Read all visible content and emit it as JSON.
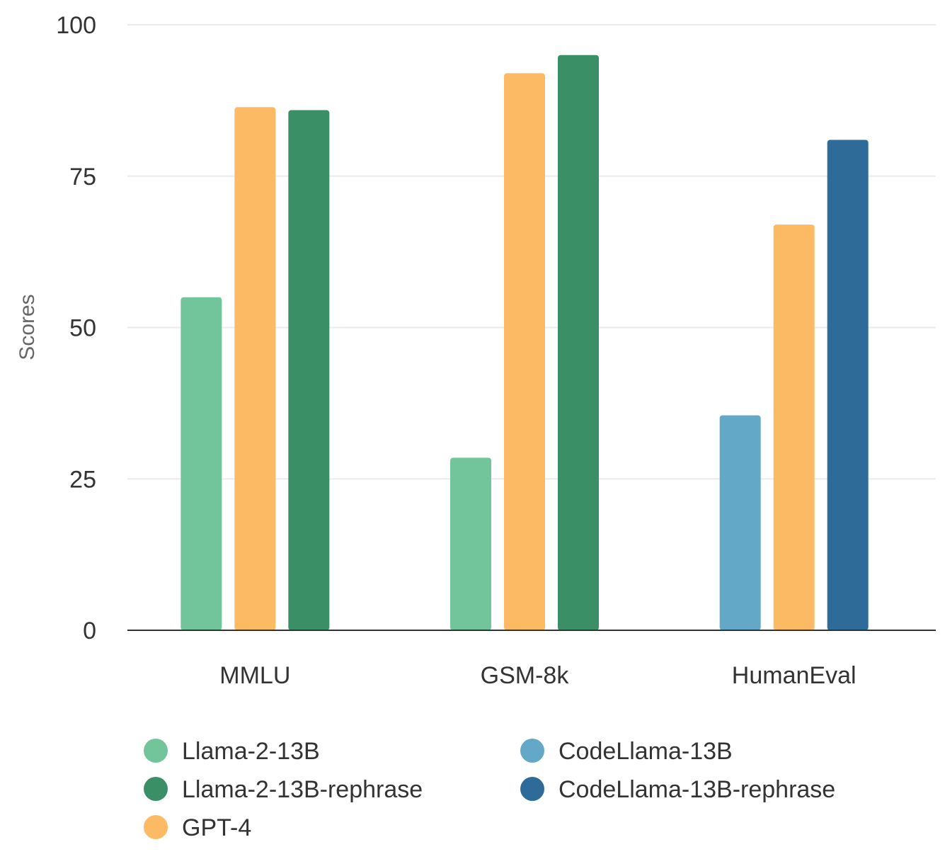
{
  "chart_data": {
    "type": "bar",
    "title": "",
    "xlabel": "",
    "ylabel": "Scores",
    "ylim": [
      0,
      100
    ],
    "yticks": [
      0,
      25,
      50,
      75,
      100
    ],
    "grid": true,
    "legend_position": "bottom",
    "categories": [
      "MMLU",
      "GSM-8k",
      "HumanEval"
    ],
    "series": [
      {
        "name": "Llama-2-13B",
        "color": "#72c59b",
        "values": [
          55,
          28.5,
          null
        ]
      },
      {
        "name": "Llama-2-13B-rephrase",
        "color": "#3a8f67",
        "values": [
          null,
          null,
          null
        ],
        "values_by_slot": true
      },
      {
        "name": "GPT-4",
        "color": "#fbba63",
        "values": [
          86.4,
          92,
          67
        ]
      },
      {
        "name": "CodeLlama-13B",
        "color": "#64a8c8",
        "values": [
          null,
          null,
          35.5
        ]
      },
      {
        "name": "CodeLlama-13B-rephrase",
        "color": "#2e6b98",
        "values": [
          null,
          null,
          81
        ]
      }
    ],
    "bars": [
      {
        "category": "MMLU",
        "series": "Llama-2-13B",
        "value": 55
      },
      {
        "category": "MMLU",
        "series": "GPT-4",
        "value": 86.4
      },
      {
        "category": "MMLU",
        "series": "Llama-2-13B-rephrase",
        "value": 85.9
      },
      {
        "category": "GSM-8k",
        "series": "Llama-2-13B",
        "value": 28.5
      },
      {
        "category": "GSM-8k",
        "series": "GPT-4",
        "value": 92
      },
      {
        "category": "GSM-8k",
        "series": "Llama-2-13B-rephrase",
        "value": 95
      },
      {
        "category": "HumanEval",
        "series": "CodeLlama-13B",
        "value": 35.5
      },
      {
        "category": "HumanEval",
        "series": "GPT-4",
        "value": 67
      },
      {
        "category": "HumanEval",
        "series": "CodeLlama-13B-rephrase",
        "value": 81
      }
    ],
    "legend": [
      {
        "name": "Llama-2-13B",
        "color": "#72c59b"
      },
      {
        "name": "CodeLlama-13B",
        "color": "#64a8c8"
      },
      {
        "name": "Llama-2-13B-rephrase",
        "color": "#3a8f67"
      },
      {
        "name": "CodeLlama-13B-rephrase",
        "color": "#2e6b98"
      },
      {
        "name": "GPT-4",
        "color": "#fbba63"
      }
    ]
  }
}
